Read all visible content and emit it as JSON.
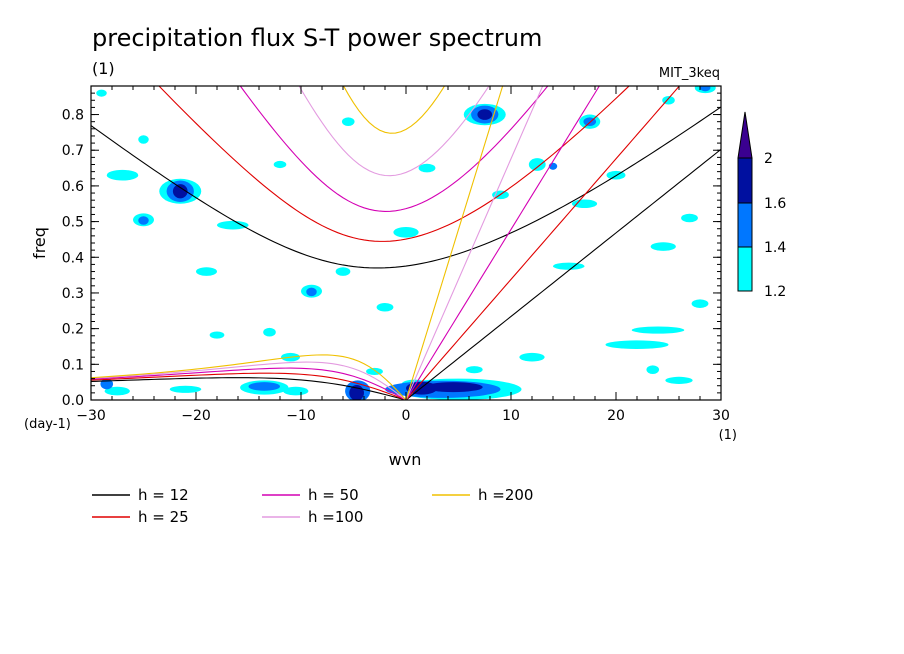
{
  "title": "precipitation flux S-T power spectrum",
  "left_label": "(1)",
  "right_label": "MIT_3keq",
  "xlabel": "wvn",
  "ylabel": "freq",
  "x_unit": "(1)",
  "y_unit": "(day-1)",
  "chart_data": {
    "type": "contour",
    "title": "precipitation flux S-T power spectrum",
    "xlabel": "wvn",
    "ylabel": "freq",
    "xlim": [
      -30,
      30
    ],
    "ylim": [
      0,
      0.88
    ],
    "x_ticks": [
      -30,
      -20,
      -10,
      0,
      10,
      20,
      30
    ],
    "y_ticks": [
      0.0,
      0.1,
      0.2,
      0.3,
      0.4,
      0.5,
      0.6,
      0.7,
      0.8
    ],
    "x_tick_labels": [
      "−30",
      "−20",
      "−10",
      "0",
      "10",
      "20",
      "30"
    ],
    "y_tick_labels": [
      "0.0",
      "0.1",
      "0.2",
      "0.3",
      "0.4",
      "0.5",
      "0.6",
      "0.7",
      "0.8"
    ],
    "colorbar": {
      "levels": [
        1.2,
        1.4,
        1.6,
        2
      ],
      "level_labels": [
        "1.2",
        "1.4",
        "1.6",
        "2"
      ],
      "colors": [
        "#00ffff",
        "#0077ff",
        "#0010a0",
        "#3a0090"
      ]
    },
    "dispersion_curves": [
      {
        "name": "h = 12",
        "h": 12,
        "color": "#000000"
      },
      {
        "name": "h = 25",
        "h": 25,
        "color": "#e00000"
      },
      {
        "name": "h = 50",
        "h": 50,
        "color": "#d400b4"
      },
      {
        "name": "h =100",
        "h": 100,
        "color": "#e39be0"
      },
      {
        "name": "h =200",
        "h": 200,
        "color": "#f0c000"
      }
    ],
    "contour_blobs": [
      {
        "x": 1.5,
        "y": 0.033,
        "rx": 1.5,
        "ry": 0.018,
        "level": 3
      },
      {
        "x": 4.5,
        "y": 0.036,
        "rx": 2.8,
        "ry": 0.014,
        "level": 3
      },
      {
        "x": 3.5,
        "y": 0.03,
        "rx": 5.5,
        "ry": 0.024,
        "level": 2
      },
      {
        "x": 5,
        "y": 0.03,
        "rx": 6,
        "ry": 0.03,
        "level": 1
      },
      {
        "x": 0.8,
        "y": 0.045,
        "rx": 1.2,
        "ry": 0.012,
        "level": 1
      },
      {
        "x": -4.7,
        "y": 0.02,
        "rx": 0.7,
        "ry": 0.022,
        "level": 3
      },
      {
        "x": -4.6,
        "y": 0.025,
        "rx": 1.2,
        "ry": 0.03,
        "level": 2
      },
      {
        "x": -13.5,
        "y": 0.038,
        "rx": 1.5,
        "ry": 0.012,
        "level": 2
      },
      {
        "x": -13.5,
        "y": 0.035,
        "rx": 2.3,
        "ry": 0.02,
        "level": 1
      },
      {
        "x": -21,
        "y": 0.03,
        "rx": 1.5,
        "ry": 0.01,
        "level": 1
      },
      {
        "x": -27.5,
        "y": 0.025,
        "rx": 1.2,
        "ry": 0.012,
        "level": 1
      },
      {
        "x": -10.5,
        "y": 0.025,
        "rx": 1.2,
        "ry": 0.012,
        "level": 1
      },
      {
        "x": -21.5,
        "y": 0.585,
        "rx": 0.7,
        "ry": 0.02,
        "level": 3
      },
      {
        "x": -21.5,
        "y": 0.585,
        "rx": 1.3,
        "ry": 0.03,
        "level": 2
      },
      {
        "x": -21.5,
        "y": 0.585,
        "rx": 2,
        "ry": 0.035,
        "level": 1
      },
      {
        "x": -25,
        "y": 0.503,
        "rx": 0.5,
        "ry": 0.012,
        "level": 2
      },
      {
        "x": -25,
        "y": 0.505,
        "rx": 1,
        "ry": 0.018,
        "level": 1
      },
      {
        "x": -9,
        "y": 0.303,
        "rx": 0.5,
        "ry": 0.012,
        "level": 2
      },
      {
        "x": -9,
        "y": 0.305,
        "rx": 1,
        "ry": 0.018,
        "level": 1
      },
      {
        "x": 7.5,
        "y": 0.8,
        "rx": 0.7,
        "ry": 0.015,
        "level": 3
      },
      {
        "x": 7.5,
        "y": 0.8,
        "rx": 1.3,
        "ry": 0.025,
        "level": 2
      },
      {
        "x": 7.5,
        "y": 0.8,
        "rx": 2,
        "ry": 0.03,
        "level": 1
      },
      {
        "x": 28.5,
        "y": 0.875,
        "rx": 0.5,
        "ry": 0.01,
        "level": 2
      },
      {
        "x": 28.5,
        "y": 0.875,
        "rx": 1,
        "ry": 0.015,
        "level": 1
      },
      {
        "x": 17.5,
        "y": 0.78,
        "rx": 0.6,
        "ry": 0.012,
        "level": 2
      },
      {
        "x": 17.5,
        "y": 0.78,
        "rx": 1,
        "ry": 0.02,
        "level": 1
      },
      {
        "x": -28.5,
        "y": 0.045,
        "rx": 0.6,
        "ry": 0.015,
        "level": 2
      },
      {
        "x": 12.5,
        "y": 0.66,
        "rx": 0.8,
        "ry": 0.018,
        "level": 1
      },
      {
        "x": 14,
        "y": 0.655,
        "rx": 0.4,
        "ry": 0.01,
        "level": 2
      },
      {
        "x": -16.5,
        "y": 0.49,
        "rx": 1.5,
        "ry": 0.012,
        "level": 1
      },
      {
        "x": -6,
        "y": 0.36,
        "rx": 0.7,
        "ry": 0.012,
        "level": 1
      },
      {
        "x": 0,
        "y": 0.47,
        "rx": 1.2,
        "ry": 0.015,
        "level": 1
      },
      {
        "x": 24.5,
        "y": 0.43,
        "rx": 1.2,
        "ry": 0.012,
        "level": 1
      },
      {
        "x": 15.5,
        "y": 0.375,
        "rx": 1.5,
        "ry": 0.01,
        "level": 1
      },
      {
        "x": 22,
        "y": 0.155,
        "rx": 3,
        "ry": 0.012,
        "level": 1
      },
      {
        "x": 24,
        "y": 0.196,
        "rx": 2.5,
        "ry": 0.01,
        "level": 1
      },
      {
        "x": 12,
        "y": 0.12,
        "rx": 1.2,
        "ry": 0.012,
        "level": 1
      },
      {
        "x": 6.5,
        "y": 0.085,
        "rx": 0.8,
        "ry": 0.01,
        "level": 1
      },
      {
        "x": 26,
        "y": 0.055,
        "rx": 1.3,
        "ry": 0.01,
        "level": 1
      },
      {
        "x": -13,
        "y": 0.19,
        "rx": 0.6,
        "ry": 0.012,
        "level": 1
      },
      {
        "x": -18,
        "y": 0.182,
        "rx": 0.7,
        "ry": 0.01,
        "level": 1
      },
      {
        "x": -27,
        "y": 0.63,
        "rx": 1.5,
        "ry": 0.015,
        "level": 1
      },
      {
        "x": -25,
        "y": 0.73,
        "rx": 0.5,
        "ry": 0.012,
        "level": 1
      },
      {
        "x": -11,
        "y": 0.12,
        "rx": 0.9,
        "ry": 0.012,
        "level": 1
      },
      {
        "x": -3,
        "y": 0.08,
        "rx": 0.8,
        "ry": 0.01,
        "level": 1
      },
      {
        "x": 17,
        "y": 0.55,
        "rx": 1.2,
        "ry": 0.012,
        "level": 1
      },
      {
        "x": 20,
        "y": 0.63,
        "rx": 0.9,
        "ry": 0.012,
        "level": 1
      },
      {
        "x": 9,
        "y": 0.575,
        "rx": 0.8,
        "ry": 0.012,
        "level": 1
      },
      {
        "x": 27,
        "y": 0.51,
        "rx": 0.8,
        "ry": 0.012,
        "level": 1
      },
      {
        "x": -19,
        "y": 0.36,
        "rx": 1,
        "ry": 0.012,
        "level": 1
      },
      {
        "x": -2,
        "y": 0.26,
        "rx": 0.8,
        "ry": 0.012,
        "level": 1
      },
      {
        "x": 2,
        "y": 0.65,
        "rx": 0.8,
        "ry": 0.012,
        "level": 1
      },
      {
        "x": -5.5,
        "y": 0.78,
        "rx": 0.6,
        "ry": 0.012,
        "level": 1
      },
      {
        "x": 23.5,
        "y": 0.085,
        "rx": 0.6,
        "ry": 0.012,
        "level": 1
      },
      {
        "x": 28,
        "y": 0.27,
        "rx": 0.8,
        "ry": 0.012,
        "level": 1
      },
      {
        "x": -12,
        "y": 0.66,
        "rx": 0.6,
        "ry": 0.01,
        "level": 1
      },
      {
        "x": -29,
        "y": 0.86,
        "rx": 0.5,
        "ry": 0.01,
        "level": 1
      },
      {
        "x": 25,
        "y": 0.84,
        "rx": 0.6,
        "ry": 0.012,
        "level": 1
      }
    ]
  }
}
